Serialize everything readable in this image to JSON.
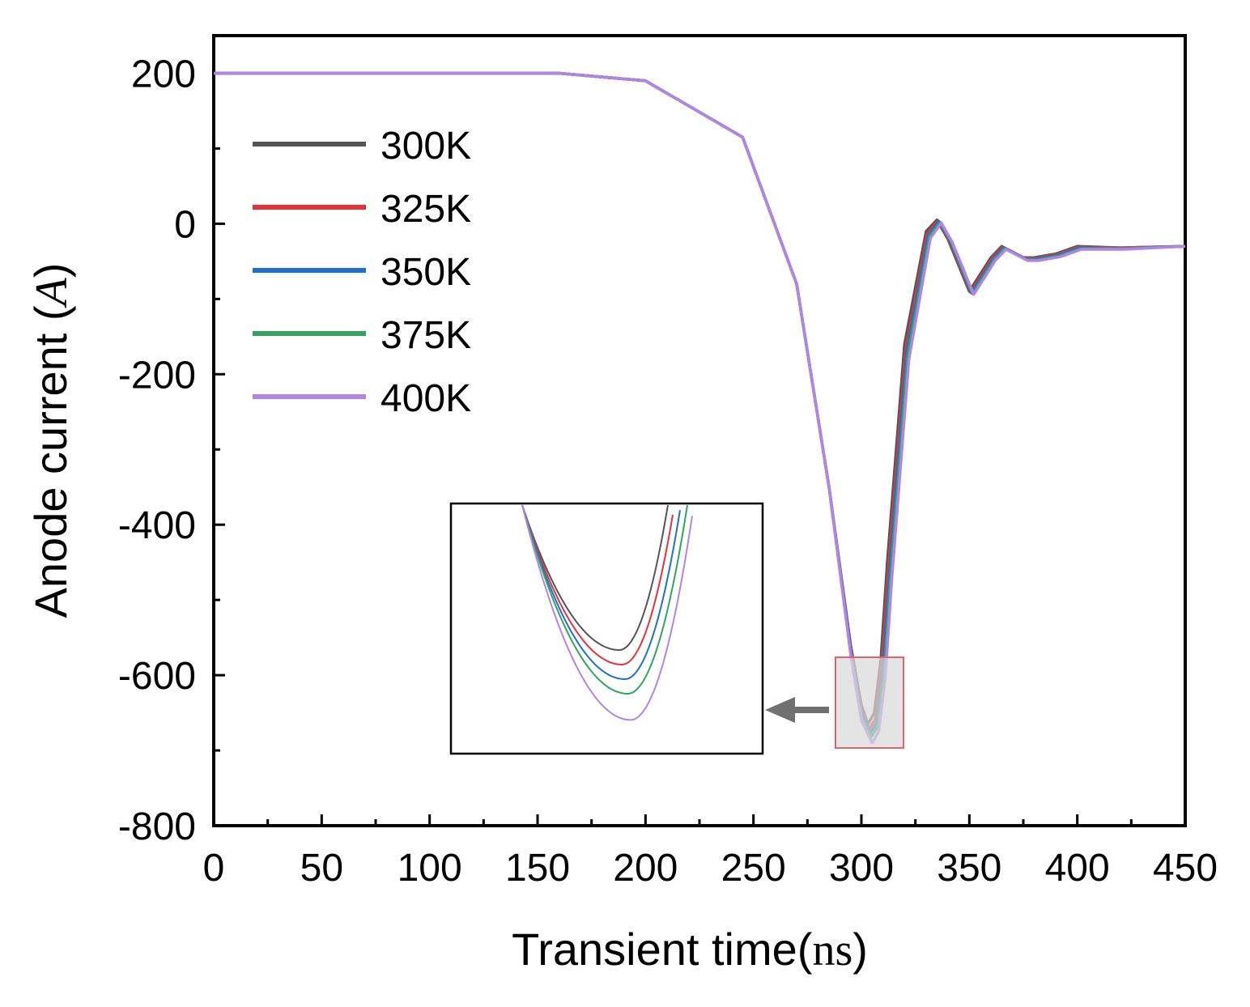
{
  "chart_data": {
    "type": "line",
    "title": "",
    "xlabel": "Transient time",
    "xlabel_unit": "ns",
    "ylabel": "Anode current",
    "ylabel_unit": "A",
    "xlim": [
      0,
      450
    ],
    "ylim": [
      -800,
      250
    ],
    "xticks": [
      0,
      50,
      100,
      150,
      200,
      250,
      300,
      350,
      400,
      450
    ],
    "xtick_labels": [
      "0",
      "50",
      "100",
      "150",
      "200",
      "250",
      "300",
      "350",
      "400",
      "450"
    ],
    "yticks": [
      -800,
      -600,
      -400,
      -200,
      0,
      200
    ],
    "ytick_labels": [
      "-800",
      "-600",
      "-400",
      "-200",
      "0",
      "200"
    ],
    "legend_position": "top-left",
    "series": [
      {
        "name": "300K",
        "color": "#555555",
        "x": [
          0,
          160,
          200,
          245,
          270,
          285,
          295,
          300,
          303,
          306,
          309,
          312,
          320,
          330,
          335,
          340,
          350,
          360,
          365,
          375,
          380,
          390,
          400,
          420,
          450
        ],
        "y": [
          200,
          200,
          190,
          115,
          -80,
          -350,
          -560,
          -640,
          -665,
          -650,
          -580,
          -450,
          -160,
          -10,
          5,
          -20,
          -90,
          -45,
          -30,
          -45,
          -45,
          -40,
          -30,
          -32,
          -30
        ]
      },
      {
        "name": "325K",
        "color": "#e8313a",
        "x": [
          0,
          160,
          200,
          245,
          270,
          285,
          295,
          300,
          303.5,
          306.5,
          309.5,
          312.5,
          320.5,
          330.5,
          335.5,
          340.5,
          350.5,
          360.5,
          365.5,
          375.5,
          380.5,
          390.5,
          400.5,
          420.5,
          450
        ],
        "y": [
          200,
          200,
          190,
          115,
          -80,
          -350,
          -563,
          -645,
          -672,
          -658,
          -588,
          -458,
          -166,
          -13,
          4,
          -21,
          -91,
          -46,
          -31,
          -46,
          -46,
          -41,
          -31,
          -32,
          -30
        ]
      },
      {
        "name": "350K",
        "color": "#1f6fd0",
        "x": [
          0,
          160,
          200,
          245,
          270,
          285,
          295,
          300,
          304,
          307,
          310,
          313,
          321,
          331,
          336,
          341,
          351,
          361,
          366,
          376,
          381,
          391,
          401,
          421,
          450
        ],
        "y": [
          200,
          200,
          190,
          115,
          -80,
          -350,
          -566,
          -650,
          -677,
          -663,
          -594,
          -464,
          -170,
          -15,
          3,
          -22,
          -92,
          -47,
          -32,
          -47,
          -47,
          -42,
          -32,
          -33,
          -30
        ]
      },
      {
        "name": "375K",
        "color": "#2fa55f",
        "x": [
          0,
          160,
          200,
          245,
          270,
          285,
          295,
          300,
          304.5,
          307.5,
          310.5,
          313.5,
          321.5,
          331.5,
          336.5,
          341.5,
          351.5,
          361.5,
          366.5,
          376.5,
          381.5,
          391.5,
          401.5,
          421.5,
          450
        ],
        "y": [
          200,
          200,
          190,
          115,
          -80,
          -350,
          -569,
          -655,
          -682,
          -668,
          -600,
          -470,
          -175,
          -17,
          2,
          -23,
          -93,
          -48,
          -33,
          -48,
          -48,
          -43,
          -33,
          -33,
          -30
        ]
      },
      {
        "name": "400K",
        "color": "#b184e8",
        "x": [
          0,
          160,
          200,
          245,
          270,
          285,
          295,
          300,
          305,
          308,
          311,
          314,
          322,
          332,
          337,
          342,
          352,
          362,
          367,
          377,
          382,
          392,
          402,
          422,
          450
        ],
        "y": [
          200,
          200,
          190,
          115,
          -80,
          -350,
          -572,
          -660,
          -690,
          -675,
          -606,
          -476,
          -180,
          -19,
          1,
          -24,
          -94,
          -49,
          -34,
          -49,
          -49,
          -44,
          -34,
          -34,
          -30
        ]
      }
    ],
    "inset": {
      "zoom_xlim": [
        288,
        320
      ],
      "zoom_ylim": [
        -700,
        -580
      ],
      "description_arrow": true,
      "minima": [
        {
          "name": "300K",
          "y": -665
        },
        {
          "name": "325K",
          "y": -672
        },
        {
          "name": "350K",
          "y": -677
        },
        {
          "name": "375K",
          "y": -682
        },
        {
          "name": "400K",
          "y": -690
        }
      ]
    },
    "colors": {
      "axis": "#000000",
      "highlight_box_stroke": "#e8606a",
      "highlight_box_fill": "#d9d9d9",
      "arrow": "#707070"
    }
  }
}
